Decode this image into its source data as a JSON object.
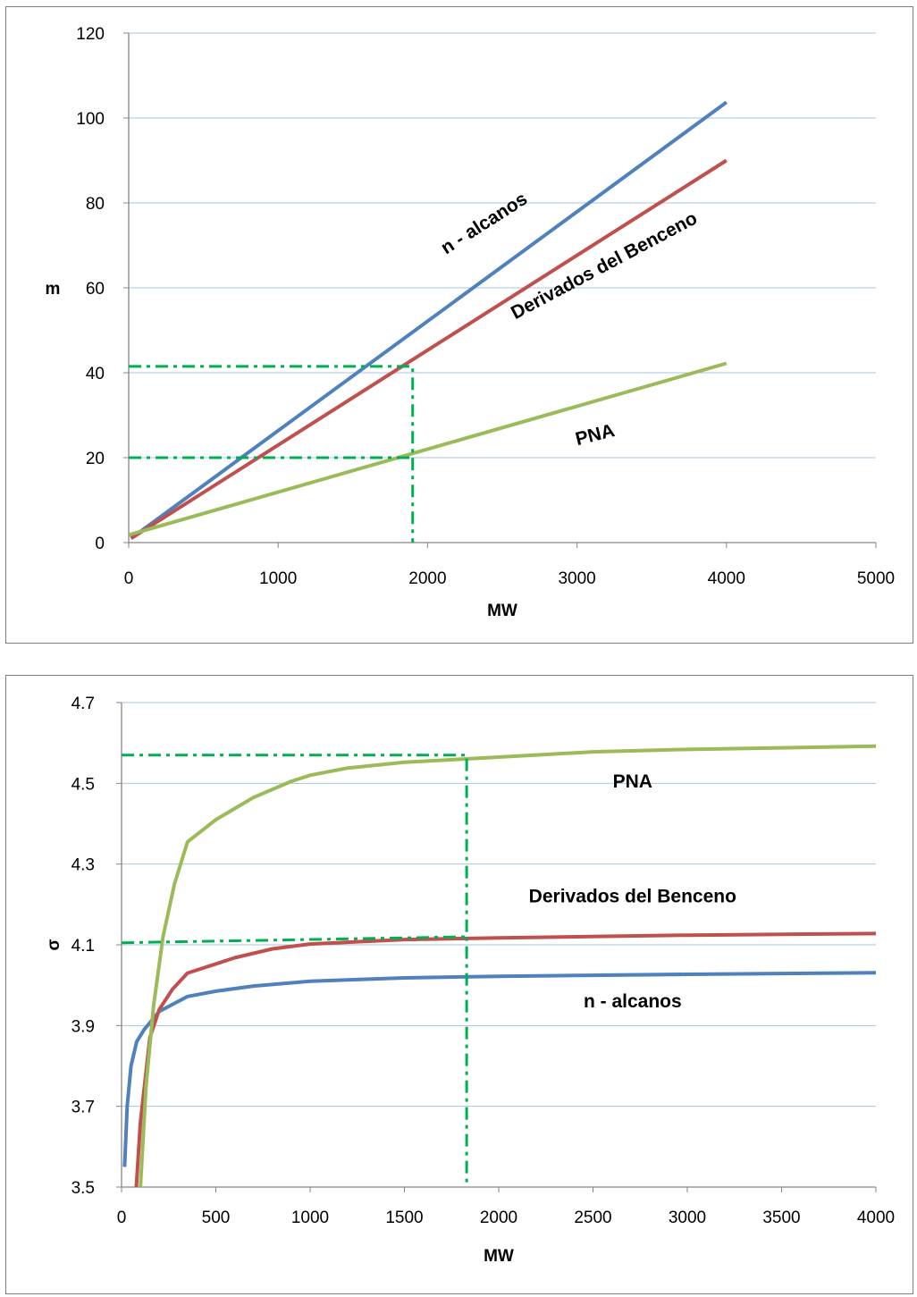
{
  "colors": {
    "n_alcanos": "#4f81bd",
    "derivados": "#c0504d",
    "pna": "#9bbb59",
    "grid": "#a7c4dc",
    "guide": "#00b050"
  },
  "chart_data": [
    {
      "type": "line",
      "xlabel": "MW",
      "ylabel": "m",
      "xlim": [
        0,
        5000
      ],
      "ylim": [
        0,
        120
      ],
      "x_ticks": [
        0,
        1000,
        2000,
        3000,
        4000,
        5000
      ],
      "y_ticks": [
        0,
        20,
        40,
        60,
        80,
        100,
        120
      ],
      "grid": "horizontal",
      "series": [
        {
          "key": "n_alcanos",
          "points": [
            [
              16,
              1.0
            ],
            [
              4000,
              103.7
            ]
          ]
        },
        {
          "key": "derivados",
          "points": [
            [
              16,
              1.0
            ],
            [
              4000,
              90.0
            ]
          ]
        },
        {
          "key": "pna",
          "points": [
            [
              0,
              1.8
            ],
            [
              4000,
              42.2
            ]
          ]
        }
      ],
      "annotations": [
        {
          "text": "n - alcanos",
          "x": 2400,
          "y": 74,
          "angle": -32.5
        },
        {
          "text": "Derivados del Benceno",
          "x": 3200,
          "y": 64,
          "angle": -28
        },
        {
          "text": "PNA",
          "x": 3130,
          "y": 24,
          "angle": -14
        }
      ],
      "guides": [
        {
          "points": [
            [
              0,
              41.5
            ],
            [
              1900,
              41.5
            ],
            [
              1900,
              0
            ]
          ]
        },
        {
          "points": [
            [
              0,
              20
            ],
            [
              1900,
              20
            ]
          ]
        }
      ]
    },
    {
      "type": "line",
      "xlabel": "MW",
      "ylabel": "σ",
      "xlim": [
        0,
        4000
      ],
      "ylim": [
        3.5,
        4.7
      ],
      "x_ticks": [
        0,
        500,
        1000,
        1500,
        2000,
        2500,
        3000,
        3500,
        4000
      ],
      "y_ticks": [
        3.5,
        3.7,
        3.9,
        4.1,
        4.3,
        4.5,
        4.7
      ],
      "y_tick_labels": [
        "3.5",
        "3.7",
        "3.9",
        "4.1",
        "4.3",
        "4.5",
        "4.7"
      ],
      "grid": "horizontal",
      "series": [
        {
          "key": "n_alcanos",
          "points": [
            [
              16,
              3.55
            ],
            [
              30,
              3.7
            ],
            [
              50,
              3.8
            ],
            [
              80,
              3.86
            ],
            [
              120,
              3.89
            ],
            [
              200,
              3.935
            ],
            [
              350,
              3.972
            ],
            [
              500,
              3.985
            ],
            [
              700,
              3.998
            ],
            [
              1000,
              4.01
            ],
            [
              1500,
              4.018
            ],
            [
              2000,
              4.022
            ],
            [
              3000,
              4.027
            ],
            [
              4000,
              4.031
            ]
          ]
        },
        {
          "key": "derivados",
          "points": [
            [
              78,
              3.5
            ],
            [
              100,
              3.66
            ],
            [
              150,
              3.87
            ],
            [
              200,
              3.94
            ],
            [
              270,
              3.99
            ],
            [
              350,
              4.03
            ],
            [
              450,
              4.045
            ],
            [
              600,
              4.068
            ],
            [
              800,
              4.09
            ],
            [
              1000,
              4.102
            ],
            [
              1500,
              4.113
            ],
            [
              2000,
              4.117
            ],
            [
              3000,
              4.124
            ],
            [
              4000,
              4.128
            ]
          ]
        },
        {
          "key": "pna",
          "points": [
            [
              100,
              3.5
            ],
            [
              130,
              3.75
            ],
            [
              170,
              3.95
            ],
            [
              220,
              4.12
            ],
            [
              280,
              4.25
            ],
            [
              350,
              4.355
            ],
            [
              500,
              4.41
            ],
            [
              700,
              4.465
            ],
            [
              900,
              4.505
            ],
            [
              1000,
              4.52
            ],
            [
              1200,
              4.538
            ],
            [
              1500,
              4.552
            ],
            [
              2000,
              4.565
            ],
            [
              2500,
              4.578
            ],
            [
              3000,
              4.584
            ],
            [
              4000,
              4.592
            ]
          ]
        }
      ],
      "annotations": [
        {
          "text": "PNA",
          "x": 2710,
          "y": 4.49,
          "angle": 0
        },
        {
          "text": "Derivados del Benceno",
          "x": 2710,
          "y": 4.205,
          "angle": 0
        },
        {
          "text": "n - alcanos",
          "x": 2710,
          "y": 3.945,
          "angle": 0
        }
      ],
      "guides": [
        {
          "points": [
            [
              0,
              4.57
            ],
            [
              1830,
              4.57
            ],
            [
              1830,
              3.5
            ]
          ]
        },
        {
          "points": [
            [
              0,
              4.105
            ],
            [
              1830,
              4.12
            ]
          ]
        }
      ]
    }
  ]
}
